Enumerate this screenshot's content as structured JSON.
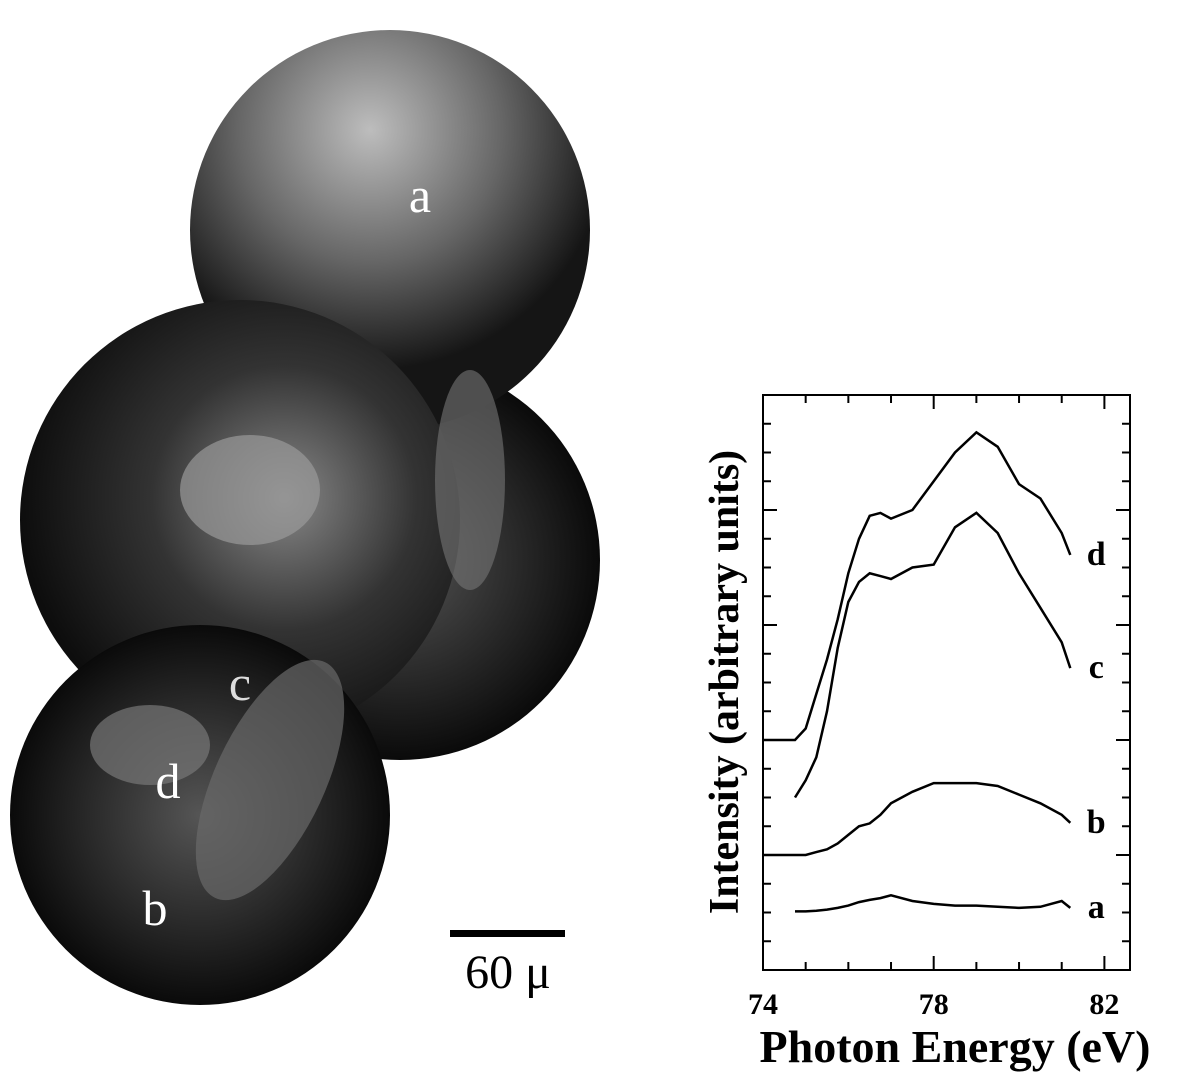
{
  "image": {
    "labels": [
      "a",
      "b",
      "c",
      "d"
    ],
    "scale_bar": "60 μ"
  },
  "chart_data": {
    "type": "line",
    "xlabel": "Photon Energy (eV)",
    "ylabel": "Intensity (arbitrary units)",
    "x": [
      74.0,
      74.75,
      75.0,
      75.25,
      75.5,
      75.75,
      76.0,
      76.25,
      76.5,
      76.75,
      77.0,
      77.5,
      78.0,
      78.5,
      79.0,
      79.5,
      80.0,
      80.5,
      81.0,
      81.2
    ],
    "series": [
      {
        "name": "a",
        "color": "#000000",
        "values": [
          null,
          1.02,
          1.02,
          1.03,
          1.05,
          1.08,
          1.12,
          1.18,
          1.22,
          1.25,
          1.3,
          1.2,
          1.15,
          1.12,
          1.12,
          1.1,
          1.08,
          1.1,
          1.2,
          1.08
        ]
      },
      {
        "name": "b",
        "color": "#000000",
        "values": [
          2.0,
          2.0,
          2.0,
          2.05,
          2.1,
          2.2,
          2.35,
          2.5,
          2.55,
          2.7,
          2.9,
          3.1,
          3.25,
          3.25,
          3.25,
          3.2,
          3.05,
          2.9,
          2.7,
          2.56
        ]
      },
      {
        "name": "c",
        "color": "#000000",
        "values": [
          null,
          3.0,
          3.3,
          3.7,
          4.5,
          5.6,
          6.4,
          6.75,
          6.9,
          6.85,
          6.8,
          7.0,
          7.05,
          7.7,
          7.95,
          7.6,
          6.9,
          6.3,
          5.7,
          5.25
        ]
      },
      {
        "name": "d",
        "color": "#000000",
        "values": [
          4.0,
          4.0,
          4.2,
          4.8,
          5.4,
          6.1,
          6.9,
          7.5,
          7.9,
          7.95,
          7.85,
          8.0,
          8.5,
          9.0,
          9.35,
          9.1,
          8.45,
          8.2,
          7.6,
          7.22
        ]
      }
    ],
    "xlim": [
      74,
      82.6
    ],
    "xticks": [
      74,
      78,
      82
    ],
    "xticks_minor": [
      75,
      76,
      77,
      79,
      80,
      81
    ],
    "ylim": [
      0,
      10
    ],
    "yticks": [
      0,
      2,
      4,
      6,
      8,
      10
    ],
    "yticks_minor": [
      0.5,
      1,
      1.5,
      2.5,
      3,
      3.5,
      4.5,
      5,
      5.5,
      6.5,
      7,
      7.5,
      8.5,
      9,
      9.5
    ],
    "grid": false
  }
}
